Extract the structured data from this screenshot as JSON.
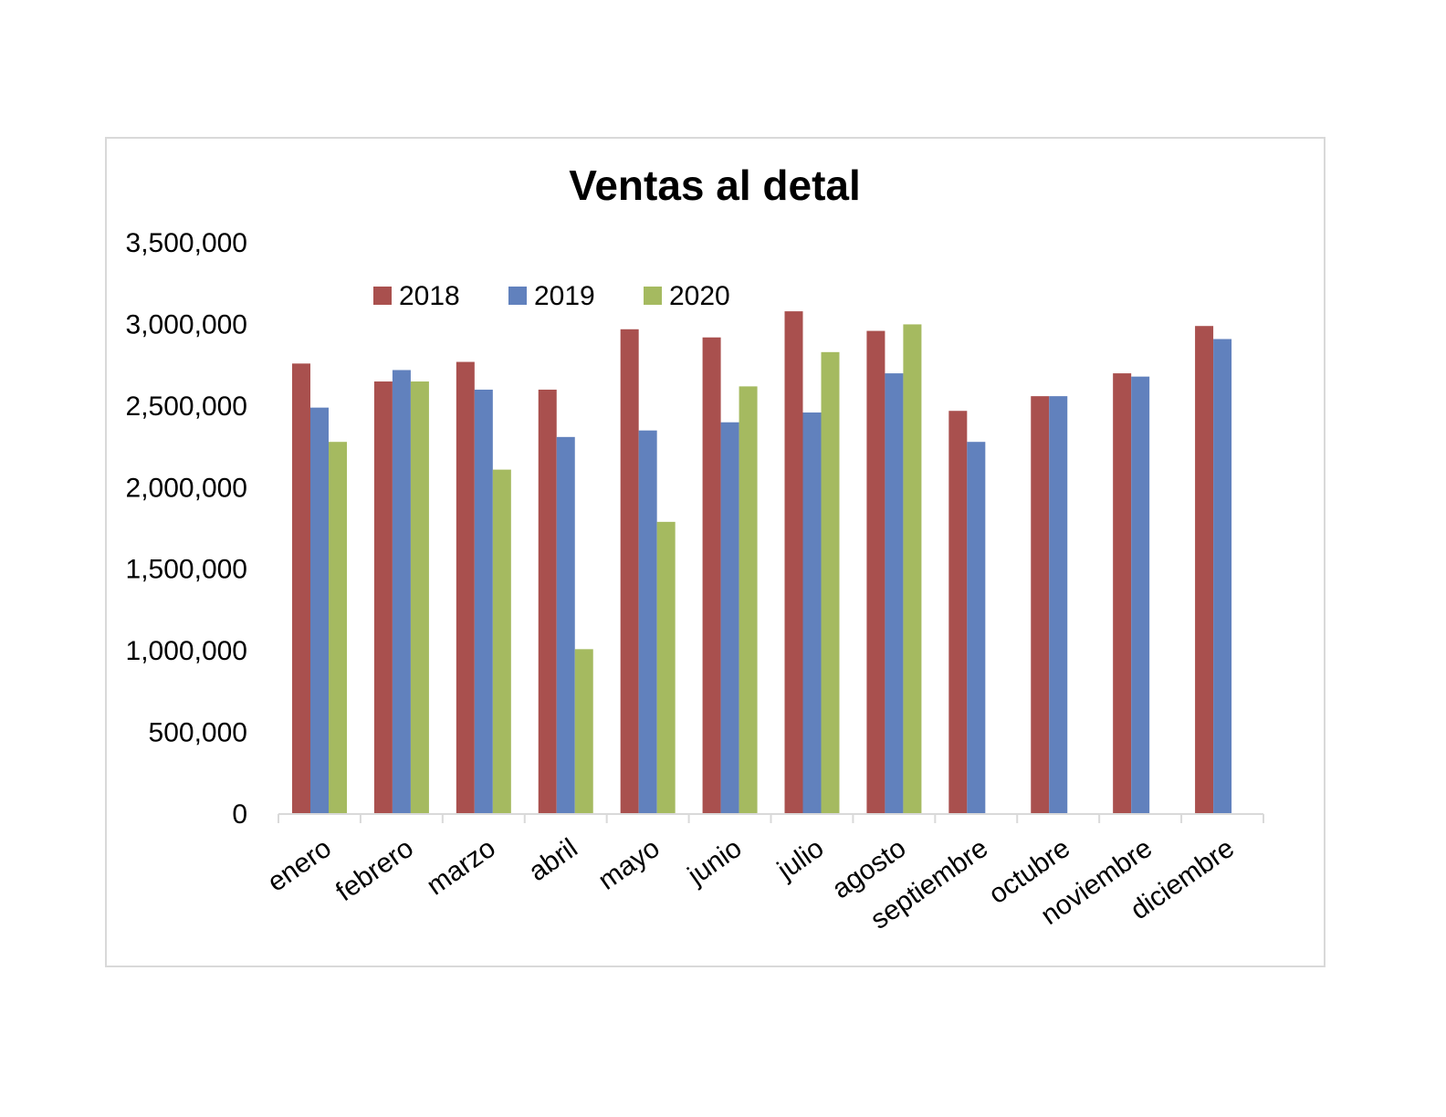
{
  "chart_data": {
    "type": "bar",
    "title": "Ventas al detal",
    "xlabel": "",
    "ylabel": "",
    "ylim": [
      0,
      3500000
    ],
    "yticks": [
      0,
      500000,
      1000000,
      1500000,
      2000000,
      2500000,
      3000000,
      3500000
    ],
    "ytick_labels": [
      "0",
      "500,000",
      "1,000,000",
      "1,500,000",
      "2,000,000",
      "2,500,000",
      "3,000,000",
      "3,500,000"
    ],
    "grid": false,
    "legend_position": "top-left",
    "categories": [
      "enero",
      "febrero",
      "marzo",
      "abril",
      "mayo",
      "junio",
      "julio",
      "agosto",
      "septiembre",
      "octubre",
      "noviembre",
      "diciembre"
    ],
    "series": [
      {
        "name": "2018",
        "color": "#A9504E",
        "values": [
          2760000,
          2650000,
          2770000,
          2600000,
          2970000,
          2920000,
          3080000,
          2960000,
          2470000,
          2560000,
          2700000,
          2990000
        ]
      },
      {
        "name": "2019",
        "color": "#6181BD",
        "values": [
          2490000,
          2720000,
          2600000,
          2310000,
          2350000,
          2400000,
          2460000,
          2700000,
          2280000,
          2560000,
          2680000,
          2910000
        ]
      },
      {
        "name": "2020",
        "color": "#A5BA60",
        "values": [
          2280000,
          2650000,
          2110000,
          1010000,
          1790000,
          2620000,
          2830000,
          3000000,
          null,
          null,
          null,
          null
        ]
      }
    ]
  }
}
